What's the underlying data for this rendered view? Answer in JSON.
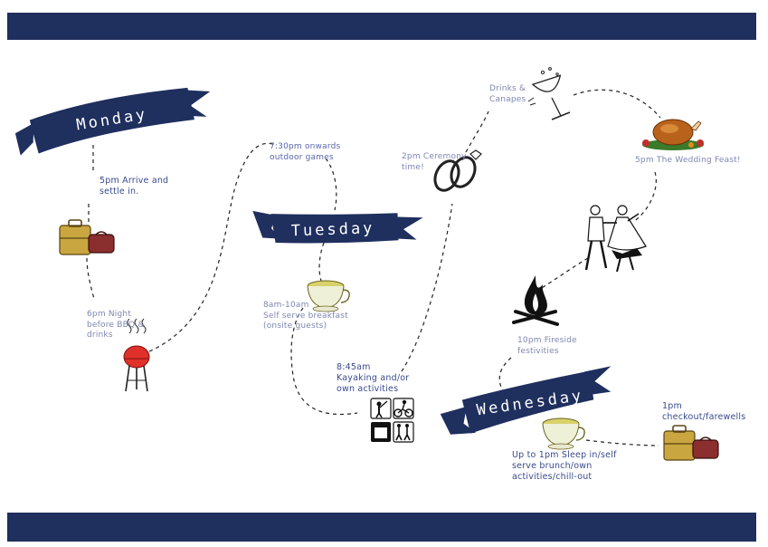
{
  "days": {
    "monday": "Monday",
    "tuesday": "Tuesday",
    "wednesday": "Wednesday"
  },
  "events": {
    "arrive": "5pm Arrive and\nsettle in.",
    "bbq": "6pm Night\nbefore BBQ &\ndrinks",
    "games": "7:30pm onwards\noutdoor games",
    "breakfast": "8am-10am\nSelf serve breakfast\n(onsite guests)",
    "kayaking": "8:45am\nKayaking and/or\nown activities",
    "ceremony": "2pm Ceremony\ntime!",
    "drinks": "Drinks &\nCanapes",
    "feast": "5pm The Wedding Feast!",
    "fireside": "10pm Fireside\nfestivities",
    "sleep_in": "Up to 1pm Sleep in/self\nserve brunch/own\nactivities/chill-out",
    "checkout": "1pm\ncheckout/farewells"
  },
  "colors": {
    "navy": "#1f2f5e",
    "label_light": "#7e86b0",
    "label_dark": "#3a4a8e"
  },
  "icons": [
    "suitcase-icon",
    "bbq-grill-icon",
    "teacup-icon",
    "activity-pictograms-icon",
    "wedding-rings-icon",
    "champagne-glass-icon",
    "roast-turkey-icon",
    "dancing-couple-icon",
    "campfire-icon"
  ]
}
